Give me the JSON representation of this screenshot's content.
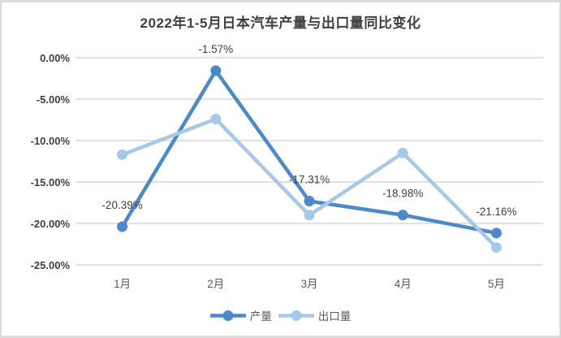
{
  "chart_data": {
    "type": "line",
    "title": "2022年1-5月日本汽车产量与出口量同比变化",
    "categories": [
      "1月",
      "2月",
      "3月",
      "4月",
      "5月"
    ],
    "series": [
      {
        "id": "production",
        "name": "产量",
        "color": "#4C89C8",
        "values": [
          -20.39,
          -1.57,
          -17.31,
          -18.98,
          -21.16
        ],
        "labels": [
          "-20.39%",
          "-1.57%",
          "-17.31%",
          "-18.98%",
          "-21.16%"
        ],
        "show_labels": true
      },
      {
        "id": "export",
        "name": "出口量",
        "color": "#A8C8E8",
        "values": [
          -11.7,
          -7.4,
          -19.0,
          -11.5,
          -22.9
        ],
        "labels": [],
        "show_labels": false
      }
    ],
    "yticks": {
      "values": [
        0,
        -5,
        -10,
        -15,
        -20,
        -25
      ],
      "labels": [
        "0.00%",
        "-5.00%",
        "-10.00%",
        "-15.00%",
        "-20.00%",
        "-25.00%"
      ]
    },
    "ylim": [
      -25,
      0
    ],
    "xlabel": "",
    "ylabel": "",
    "grid": true,
    "legend_position": "bottom",
    "colors": {
      "grid": "#D9D9D9",
      "axis_text": "#404040",
      "category_text": "#595959",
      "data_label_text": "#404040",
      "title_text": "#404040",
      "frame_border": "#DBDBDB",
      "background": "#FFFFFF"
    }
  }
}
